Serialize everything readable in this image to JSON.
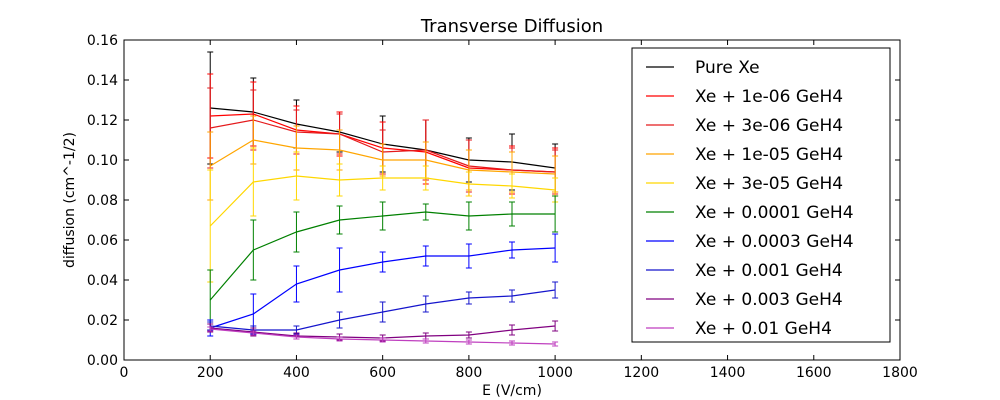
{
  "chart_data": {
    "type": "line",
    "title": "Transverse Diffusion",
    "xlabel": "E (V/cm)",
    "ylabel": "diffusion (cm^-1/2)",
    "xlim": [
      0,
      1800
    ],
    "ylim": [
      0,
      0.16
    ],
    "xticks": [
      "0",
      "200",
      "400",
      "600",
      "800",
      "1000",
      "1200",
      "1400",
      "1600",
      "1800"
    ],
    "yticks": [
      "0.00",
      "0.02",
      "0.04",
      "0.06",
      "0.08",
      "0.10",
      "0.12",
      "0.14",
      "0.16"
    ],
    "grid": false,
    "legend_position": "top-right",
    "x": [
      200,
      300,
      400,
      500,
      600,
      700,
      800,
      900,
      1000
    ],
    "series": [
      {
        "name": "Pure Xe",
        "color": "#000000",
        "values": [
          0.126,
          0.124,
          0.118,
          0.114,
          0.108,
          0.105,
          0.1,
          0.099,
          0.096
        ],
        "errors": [
          0.028,
          0.017,
          0.012,
          0.01,
          0.014,
          0.015,
          0.011,
          0.014,
          0.012
        ]
      },
      {
        "name": "Xe + 1e-06 GeH4",
        "color": "#ff0000",
        "values": [
          0.122,
          0.123,
          0.115,
          0.113,
          0.106,
          0.104,
          0.096,
          0.095,
          0.094
        ],
        "errors": [
          0.021,
          0.016,
          0.012,
          0.011,
          0.013,
          0.016,
          0.014,
          0.012,
          0.012
        ]
      },
      {
        "name": "Xe + 3e-06 GeH4",
        "color": "#e41a1c",
        "values": [
          0.116,
          0.12,
          0.114,
          0.113,
          0.104,
          0.105,
          0.097,
          0.095,
          0.094
        ],
        "errors": [
          0.02,
          0.015,
          0.011,
          0.01,
          0.011,
          0.015,
          0.013,
          0.011,
          0.011
        ]
      },
      {
        "name": "Xe + 1e-05 GeH4",
        "color": "#ffa500",
        "values": [
          0.097,
          0.11,
          0.106,
          0.105,
          0.1,
          0.1,
          0.095,
          0.094,
          0.093
        ],
        "errors": [
          0.017,
          0.012,
          0.011,
          0.01,
          0.008,
          0.009,
          0.01,
          0.01,
          0.009
        ]
      },
      {
        "name": "Xe + 3e-05 GeH4",
        "color": "#ffd700",
        "values": [
          0.067,
          0.089,
          0.092,
          0.09,
          0.091,
          0.091,
          0.088,
          0.087,
          0.085
        ],
        "errors": [
          0.028,
          0.017,
          0.012,
          0.008,
          0.006,
          0.006,
          0.006,
          0.006,
          0.006
        ]
      },
      {
        "name": "Xe + 0.0001 GeH4",
        "color": "#008000",
        "values": [
          0.03,
          0.055,
          0.064,
          0.07,
          0.072,
          0.074,
          0.072,
          0.073,
          0.073
        ],
        "errors": [
          0.015,
          0.015,
          0.01,
          0.007,
          0.007,
          0.004,
          0.007,
          0.006,
          0.009
        ]
      },
      {
        "name": "Xe + 0.0003 GeH4",
        "color": "#0000ff",
        "values": [
          0.016,
          0.023,
          0.038,
          0.045,
          0.049,
          0.052,
          0.052,
          0.055,
          0.056
        ],
        "errors": [
          0.004,
          0.01,
          0.009,
          0.011,
          0.005,
          0.005,
          0.006,
          0.004,
          0.007
        ]
      },
      {
        "name": "Xe + 0.001 GeH4",
        "color": "#1515cc",
        "values": [
          0.017,
          0.015,
          0.015,
          0.02,
          0.024,
          0.028,
          0.031,
          0.032,
          0.035
        ],
        "errors": [
          0.002,
          0.002,
          0.002,
          0.004,
          0.005,
          0.004,
          0.003,
          0.003,
          0.004
        ]
      },
      {
        "name": "Xe + 0.003 GeH4",
        "color": "#800080",
        "values": [
          0.016,
          0.014,
          0.012,
          0.0115,
          0.011,
          0.012,
          0.0125,
          0.015,
          0.017
        ],
        "errors": [
          0.002,
          0.002,
          0.0015,
          0.0015,
          0.0015,
          0.0015,
          0.0015,
          0.0025,
          0.0025
        ]
      },
      {
        "name": "Xe + 0.01 GeH4",
        "color": "#bf3fbf",
        "values": [
          0.0155,
          0.0135,
          0.0115,
          0.0105,
          0.01,
          0.0095,
          0.009,
          0.0085,
          0.008
        ],
        "errors": [
          0.001,
          0.001,
          0.001,
          0.001,
          0.001,
          0.001,
          0.001,
          0.001,
          0.001
        ]
      }
    ]
  }
}
